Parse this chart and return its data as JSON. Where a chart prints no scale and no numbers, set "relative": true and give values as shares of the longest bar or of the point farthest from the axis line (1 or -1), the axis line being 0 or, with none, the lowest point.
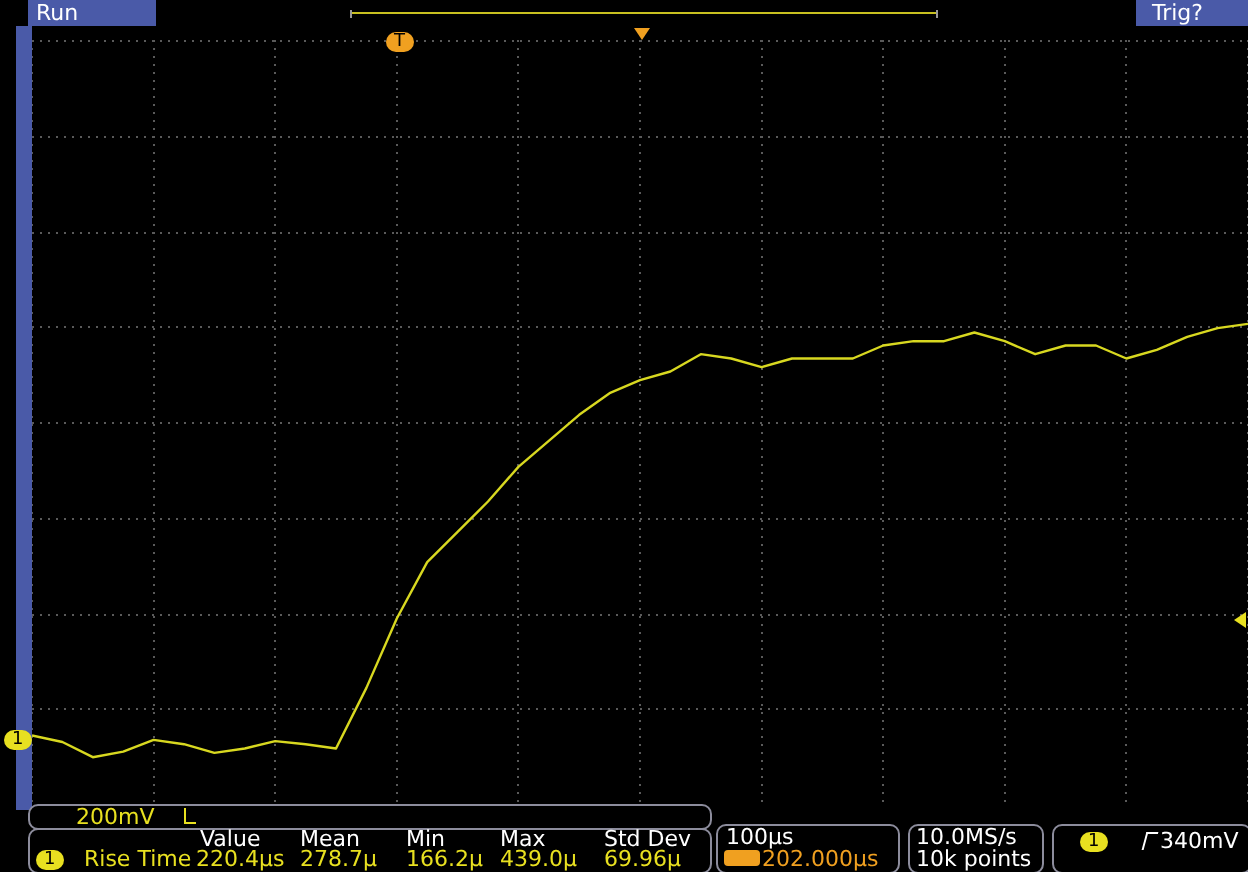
{
  "chart_data": {
    "type": "line",
    "relative": true,
    "grid": true,
    "marker": "none",
    "line_style": "solid",
    "categories": [
      null,
      null,
      null,
      null,
      null,
      null,
      null,
      null,
      null,
      null,
      null,
      null,
      null,
      null,
      null,
      null,
      null,
      null,
      null,
      null,
      null,
      null,
      null,
      null,
      null,
      null,
      null,
      null,
      null,
      null,
      null,
      null,
      null,
      null,
      null,
      null,
      null,
      null,
      null,
      null,
      null
    ],
    "series": [
      {
        "color": "#d8d820",
        "values": [
          0.05,
          0.035,
          0,
          0.013,
          0.04,
          0.03,
          0.01,
          0.02,
          0.037,
          0.03,
          0.02,
          0.16,
          0.32,
          0.45,
          0.52,
          0.59,
          0.67,
          0.73,
          0.79,
          0.84,
          0.87,
          0.89,
          0.93,
          0.92,
          0.9,
          0.92,
          0.92,
          0.92,
          0.95,
          0.96,
          0.96,
          0.98,
          0.96,
          0.93,
          0.95,
          0.95,
          0.92,
          0.94,
          0.97,
          0.99,
          1
        ]
      }
    ],
    "annotations": [
      "Run",
      "Trig?",
      "1",
      "200mV",
      "1",
      "Rise Time",
      "Value",
      "Mean",
      "Min",
      "Max",
      "Std Dev",
      "220.4µs",
      "278.7µ",
      "166.2µ",
      "439.0µ",
      "69.96µ",
      "100µs",
      "202.000µs",
      "10.0MS/s",
      "10k points",
      "1",
      "340mV",
      "T"
    ]
  }
}
